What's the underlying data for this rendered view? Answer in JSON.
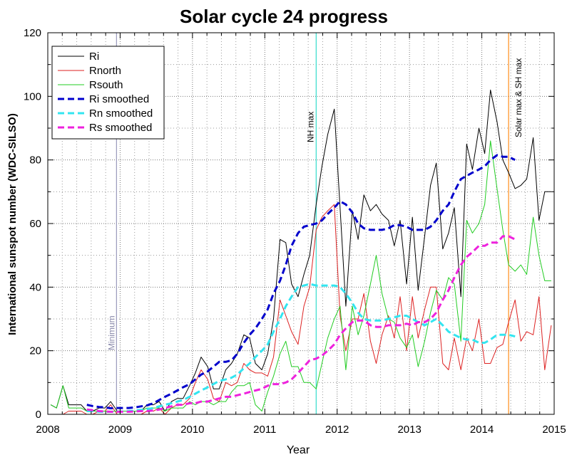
{
  "chart_data": {
    "type": "line",
    "title": "Solar cycle 24 progress",
    "xlabel": "Year",
    "ylabel": "International sunspot number (WDC-SILSO)",
    "xlim": [
      2008,
      2015
    ],
    "ylim": [
      0,
      120
    ],
    "xticks": [
      2008,
      2009,
      2010,
      2011,
      2012,
      2013,
      2014,
      2015
    ],
    "yticks": [
      0,
      20,
      40,
      60,
      80,
      100,
      120
    ],
    "grid": true,
    "legend_position": "top-left",
    "annotations": [
      {
        "label": "Minimum",
        "x": 2008.95,
        "color": "#9999bb"
      },
      {
        "label": "NH max",
        "x": 2011.71,
        "color": "#33ddcc"
      },
      {
        "label": "Solar max & SH max",
        "x": 2014.37,
        "color": "#ff8c1a"
      }
    ],
    "series": [
      {
        "name": "Ri",
        "color": "#000000",
        "style": "solid",
        "x": [
          2008.04,
          2008.12,
          2008.21,
          2008.29,
          2008.37,
          2008.46,
          2008.54,
          2008.62,
          2008.71,
          2008.79,
          2008.87,
          2008.96,
          2009.04,
          2009.12,
          2009.21,
          2009.29,
          2009.37,
          2009.46,
          2009.54,
          2009.62,
          2009.71,
          2009.79,
          2009.87,
          2009.96,
          2010.04,
          2010.12,
          2010.21,
          2010.29,
          2010.37,
          2010.46,
          2010.54,
          2010.62,
          2010.71,
          2010.79,
          2010.87,
          2010.96,
          2011.04,
          2011.12,
          2011.21,
          2011.29,
          2011.37,
          2011.46,
          2011.54,
          2011.62,
          2011.71,
          2011.79,
          2011.87,
          2011.96,
          2012.04,
          2012.12,
          2012.21,
          2012.29,
          2012.37,
          2012.46,
          2012.54,
          2012.62,
          2012.71,
          2012.79,
          2012.87,
          2012.96,
          2013.04,
          2013.12,
          2013.21,
          2013.29,
          2013.37,
          2013.46,
          2013.54,
          2013.62,
          2013.71,
          2013.79,
          2013.87,
          2013.96,
          2014.04,
          2014.12,
          2014.21,
          2014.29,
          2014.37,
          2014.46,
          2014.54,
          2014.62,
          2014.71,
          2014.79,
          2014.87,
          2014.96
        ],
        "values": [
          3,
          2,
          9,
          3,
          3,
          3,
          1,
          1,
          2,
          2,
          4,
          1,
          1,
          1,
          1,
          1,
          3,
          3,
          4,
          1,
          4,
          5,
          5,
          9,
          13,
          18,
          15,
          8,
          8,
          14,
          16,
          19,
          25,
          24,
          16,
          14,
          19,
          30,
          55,
          54,
          41,
          37,
          44,
          50,
          66,
          78,
          88,
          96,
          65,
          34,
          64,
          55,
          69,
          64,
          66,
          63,
          61,
          53,
          61,
          41,
          62,
          39,
          56,
          72,
          79,
          52,
          57,
          65,
          37,
          85,
          77,
          90,
          82,
          102,
          92,
          80,
          76,
          71,
          72,
          74,
          87,
          61,
          70,
          70
        ]
      },
      {
        "name": "Rnorth",
        "color": "#dd2222",
        "style": "solid",
        "x": [
          2008.04,
          2008.12,
          2008.21,
          2008.29,
          2008.37,
          2008.46,
          2008.54,
          2008.62,
          2008.71,
          2008.79,
          2008.87,
          2008.96,
          2009.04,
          2009.12,
          2009.21,
          2009.29,
          2009.37,
          2009.46,
          2009.54,
          2009.62,
          2009.71,
          2009.79,
          2009.87,
          2009.96,
          2010.04,
          2010.12,
          2010.21,
          2010.29,
          2010.37,
          2010.46,
          2010.54,
          2010.62,
          2010.71,
          2010.79,
          2010.87,
          2010.96,
          2011.04,
          2011.12,
          2011.21,
          2011.29,
          2011.37,
          2011.46,
          2011.54,
          2011.62,
          2011.71,
          2011.79,
          2011.87,
          2011.96,
          2012.04,
          2012.12,
          2012.21,
          2012.29,
          2012.37,
          2012.46,
          2012.54,
          2012.62,
          2012.71,
          2012.79,
          2012.87,
          2012.96,
          2013.04,
          2013.12,
          2013.21,
          2013.29,
          2013.37,
          2013.46,
          2013.54,
          2013.62,
          2013.71,
          2013.79,
          2013.87,
          2013.96,
          2014.04,
          2014.12,
          2014.21,
          2014.29,
          2014.37,
          2014.46,
          2014.54,
          2014.62,
          2014.71,
          2014.79,
          2014.87,
          2014.96
        ],
        "values": [
          0,
          0,
          0,
          1,
          1,
          1,
          0,
          0,
          1,
          1,
          3,
          0,
          0,
          0,
          0,
          0,
          1,
          1,
          2,
          0,
          2,
          3,
          3,
          5,
          10,
          14,
          11,
          5,
          4,
          10,
          9,
          10,
          16,
          14,
          13,
          13,
          12,
          18,
          36,
          31,
          26,
          22,
          34,
          40,
          58,
          62,
          64,
          66,
          31,
          20,
          30,
          30,
          38,
          23,
          16,
          25,
          31,
          24,
          37,
          20,
          37,
          24,
          33,
          40,
          40,
          16,
          14,
          24,
          14,
          24,
          20,
          30,
          16,
          16,
          21,
          22,
          29,
          36,
          23,
          26,
          25,
          37,
          14,
          28
        ]
      },
      {
        "name": "Rsouth",
        "color": "#22cc22",
        "style": "solid",
        "x": [
          2008.04,
          2008.12,
          2008.21,
          2008.29,
          2008.37,
          2008.46,
          2008.54,
          2008.62,
          2008.71,
          2008.79,
          2008.87,
          2008.96,
          2009.04,
          2009.12,
          2009.21,
          2009.29,
          2009.37,
          2009.46,
          2009.54,
          2009.62,
          2009.71,
          2009.79,
          2009.87,
          2009.96,
          2010.04,
          2010.12,
          2010.21,
          2010.29,
          2010.37,
          2010.46,
          2010.54,
          2010.62,
          2010.71,
          2010.79,
          2010.87,
          2010.96,
          2011.04,
          2011.12,
          2011.21,
          2011.29,
          2011.37,
          2011.46,
          2011.54,
          2011.62,
          2011.71,
          2011.79,
          2011.87,
          2011.96,
          2012.04,
          2012.12,
          2012.21,
          2012.29,
          2012.37,
          2012.46,
          2012.54,
          2012.62,
          2012.71,
          2012.79,
          2012.87,
          2012.96,
          2013.04,
          2013.12,
          2013.21,
          2013.29,
          2013.37,
          2013.46,
          2013.54,
          2013.62,
          2013.71,
          2013.79,
          2013.87,
          2013.96,
          2014.04,
          2014.12,
          2014.21,
          2014.29,
          2014.37,
          2014.46,
          2014.54,
          2014.62,
          2014.71,
          2014.79,
          2014.87,
          2014.96
        ],
        "values": [
          3,
          2,
          9,
          2,
          2,
          2,
          1,
          1,
          1,
          1,
          1,
          1,
          1,
          1,
          1,
          1,
          2,
          2,
          2,
          1,
          2,
          2,
          2,
          4,
          3,
          4,
          4,
          3,
          4,
          4,
          7,
          9,
          9,
          10,
          3,
          1,
          7,
          12,
          19,
          23,
          15,
          15,
          10,
          10,
          8,
          16,
          24,
          30,
          34,
          14,
          34,
          25,
          31,
          41,
          50,
          38,
          30,
          29,
          24,
          21,
          25,
          15,
          23,
          32,
          39,
          36,
          43,
          41,
          23,
          61,
          57,
          60,
          66,
          86,
          71,
          58,
          47,
          45,
          47,
          44,
          62,
          50,
          42,
          42
        ]
      },
      {
        "name": "Ri smoothed",
        "color": "#0000cc",
        "style": "dashed",
        "x": [
          2008.54,
          2008.62,
          2008.71,
          2008.79,
          2008.87,
          2008.96,
          2009.04,
          2009.12,
          2009.21,
          2009.29,
          2009.37,
          2009.46,
          2009.54,
          2009.62,
          2009.71,
          2009.79,
          2009.87,
          2009.96,
          2010.04,
          2010.12,
          2010.21,
          2010.29,
          2010.37,
          2010.46,
          2010.54,
          2010.62,
          2010.71,
          2010.79,
          2010.87,
          2010.96,
          2011.04,
          2011.12,
          2011.21,
          2011.29,
          2011.37,
          2011.46,
          2011.54,
          2011.62,
          2011.71,
          2011.79,
          2011.87,
          2011.96,
          2012.04,
          2012.12,
          2012.21,
          2012.29,
          2012.37,
          2012.46,
          2012.54,
          2012.62,
          2012.71,
          2012.79,
          2012.87,
          2012.96,
          2013.04,
          2013.12,
          2013.21,
          2013.29,
          2013.37,
          2013.46,
          2013.54,
          2013.62,
          2013.71,
          2013.79,
          2013.87,
          2013.96,
          2014.04,
          2014.12,
          2014.21,
          2014.29,
          2014.37,
          2014.46
        ],
        "values": [
          3,
          2.6,
          2.3,
          2.2,
          1.9,
          2,
          2,
          2,
          2.2,
          2.5,
          2.8,
          3.5,
          4.5,
          5.5,
          6.5,
          7.5,
          8.5,
          9.5,
          11,
          12.5,
          13.5,
          15,
          16.5,
          16.5,
          17,
          19,
          22.5,
          25,
          27,
          30,
          33,
          38,
          42,
          47,
          53,
          57,
          59,
          59.5,
          60,
          61,
          63,
          65,
          67,
          66,
          63.5,
          60,
          58.5,
          58,
          58,
          58,
          58.5,
          59.5,
          59.5,
          59,
          58,
          58,
          58,
          59,
          61,
          64,
          66,
          70,
          74,
          75,
          76,
          77,
          78,
          80,
          81.5,
          81,
          81,
          80
        ]
      },
      {
        "name": "Rn smoothed",
        "color": "#33e5f0",
        "style": "dashed",
        "x": [
          2008.54,
          2008.62,
          2008.71,
          2008.79,
          2008.87,
          2008.96,
          2009.04,
          2009.12,
          2009.21,
          2009.29,
          2009.37,
          2009.46,
          2009.54,
          2009.62,
          2009.71,
          2009.79,
          2009.87,
          2009.96,
          2010.04,
          2010.12,
          2010.21,
          2010.29,
          2010.37,
          2010.46,
          2010.54,
          2010.62,
          2010.71,
          2010.79,
          2010.87,
          2010.96,
          2011.04,
          2011.12,
          2011.21,
          2011.29,
          2011.37,
          2011.46,
          2011.54,
          2011.62,
          2011.71,
          2011.79,
          2011.87,
          2011.96,
          2012.04,
          2012.12,
          2012.21,
          2012.29,
          2012.37,
          2012.46,
          2012.54,
          2012.62,
          2012.71,
          2012.79,
          2012.87,
          2012.96,
          2013.04,
          2013.12,
          2013.21,
          2013.29,
          2013.37,
          2013.46,
          2013.54,
          2013.62,
          2013.71,
          2013.79,
          2013.87,
          2013.96,
          2014.04,
          2014.12,
          2014.21,
          2014.29,
          2014.37,
          2014.46
        ],
        "values": [
          1,
          1,
          0.8,
          0.8,
          0.8,
          0.9,
          0.9,
          1,
          1.2,
          1.4,
          1.6,
          2,
          2.5,
          3,
          3.5,
          4,
          4.5,
          5.5,
          6.5,
          7.5,
          8.5,
          9.5,
          10.5,
          11,
          11.5,
          12.5,
          14.5,
          16,
          18,
          20,
          22,
          26,
          30,
          34,
          37,
          40,
          40.5,
          41,
          40.5,
          40.5,
          40.5,
          40.5,
          40,
          38,
          35,
          32,
          30,
          29.5,
          29.5,
          29.5,
          30,
          30.5,
          31,
          31,
          30,
          29,
          28,
          29,
          30,
          28,
          26,
          25,
          24,
          23.5,
          23.5,
          22.5,
          22.5,
          23.5,
          25,
          25,
          25,
          24.5
        ]
      },
      {
        "name": "Rs smoothed",
        "color": "#ee22dd",
        "style": "dashed",
        "x": [
          2008.54,
          2008.62,
          2008.71,
          2008.79,
          2008.87,
          2008.96,
          2009.04,
          2009.12,
          2009.21,
          2009.29,
          2009.37,
          2009.46,
          2009.54,
          2009.62,
          2009.71,
          2009.79,
          2009.87,
          2009.96,
          2010.04,
          2010.12,
          2010.21,
          2010.29,
          2010.37,
          2010.46,
          2010.54,
          2010.62,
          2010.71,
          2010.79,
          2010.87,
          2010.96,
          2011.04,
          2011.12,
          2011.21,
          2011.29,
          2011.37,
          2011.46,
          2011.54,
          2011.62,
          2011.71,
          2011.79,
          2011.87,
          2011.96,
          2012.04,
          2012.12,
          2012.21,
          2012.29,
          2012.37,
          2012.46,
          2012.54,
          2012.62,
          2012.71,
          2012.79,
          2012.87,
          2012.96,
          2013.04,
          2013.12,
          2013.21,
          2013.29,
          2013.37,
          2013.46,
          2013.54,
          2013.62,
          2013.71,
          2013.79,
          2013.87,
          2013.96,
          2014.04,
          2014.12,
          2014.21,
          2014.29,
          2014.37,
          2014.46
        ],
        "values": [
          1.5,
          1.3,
          1,
          0.9,
          0.8,
          0.8,
          0.8,
          0.8,
          0.9,
          1,
          1,
          1.2,
          1.5,
          2,
          2.5,
          3,
          3,
          3.5,
          3.5,
          4,
          4,
          4.5,
          5,
          5.5,
          5.5,
          6,
          6.5,
          7,
          7.5,
          8,
          9,
          9.5,
          9.5,
          10,
          11,
          13,
          15,
          17,
          17.5,
          18.5,
          20,
          22,
          25,
          27,
          29,
          29.5,
          29.5,
          28,
          27.5,
          27.5,
          28,
          28,
          28,
          28.5,
          28,
          29,
          29,
          30,
          32,
          36,
          39,
          43,
          47,
          49.5,
          51,
          53,
          53,
          54,
          54,
          56,
          56,
          55
        ]
      }
    ]
  }
}
